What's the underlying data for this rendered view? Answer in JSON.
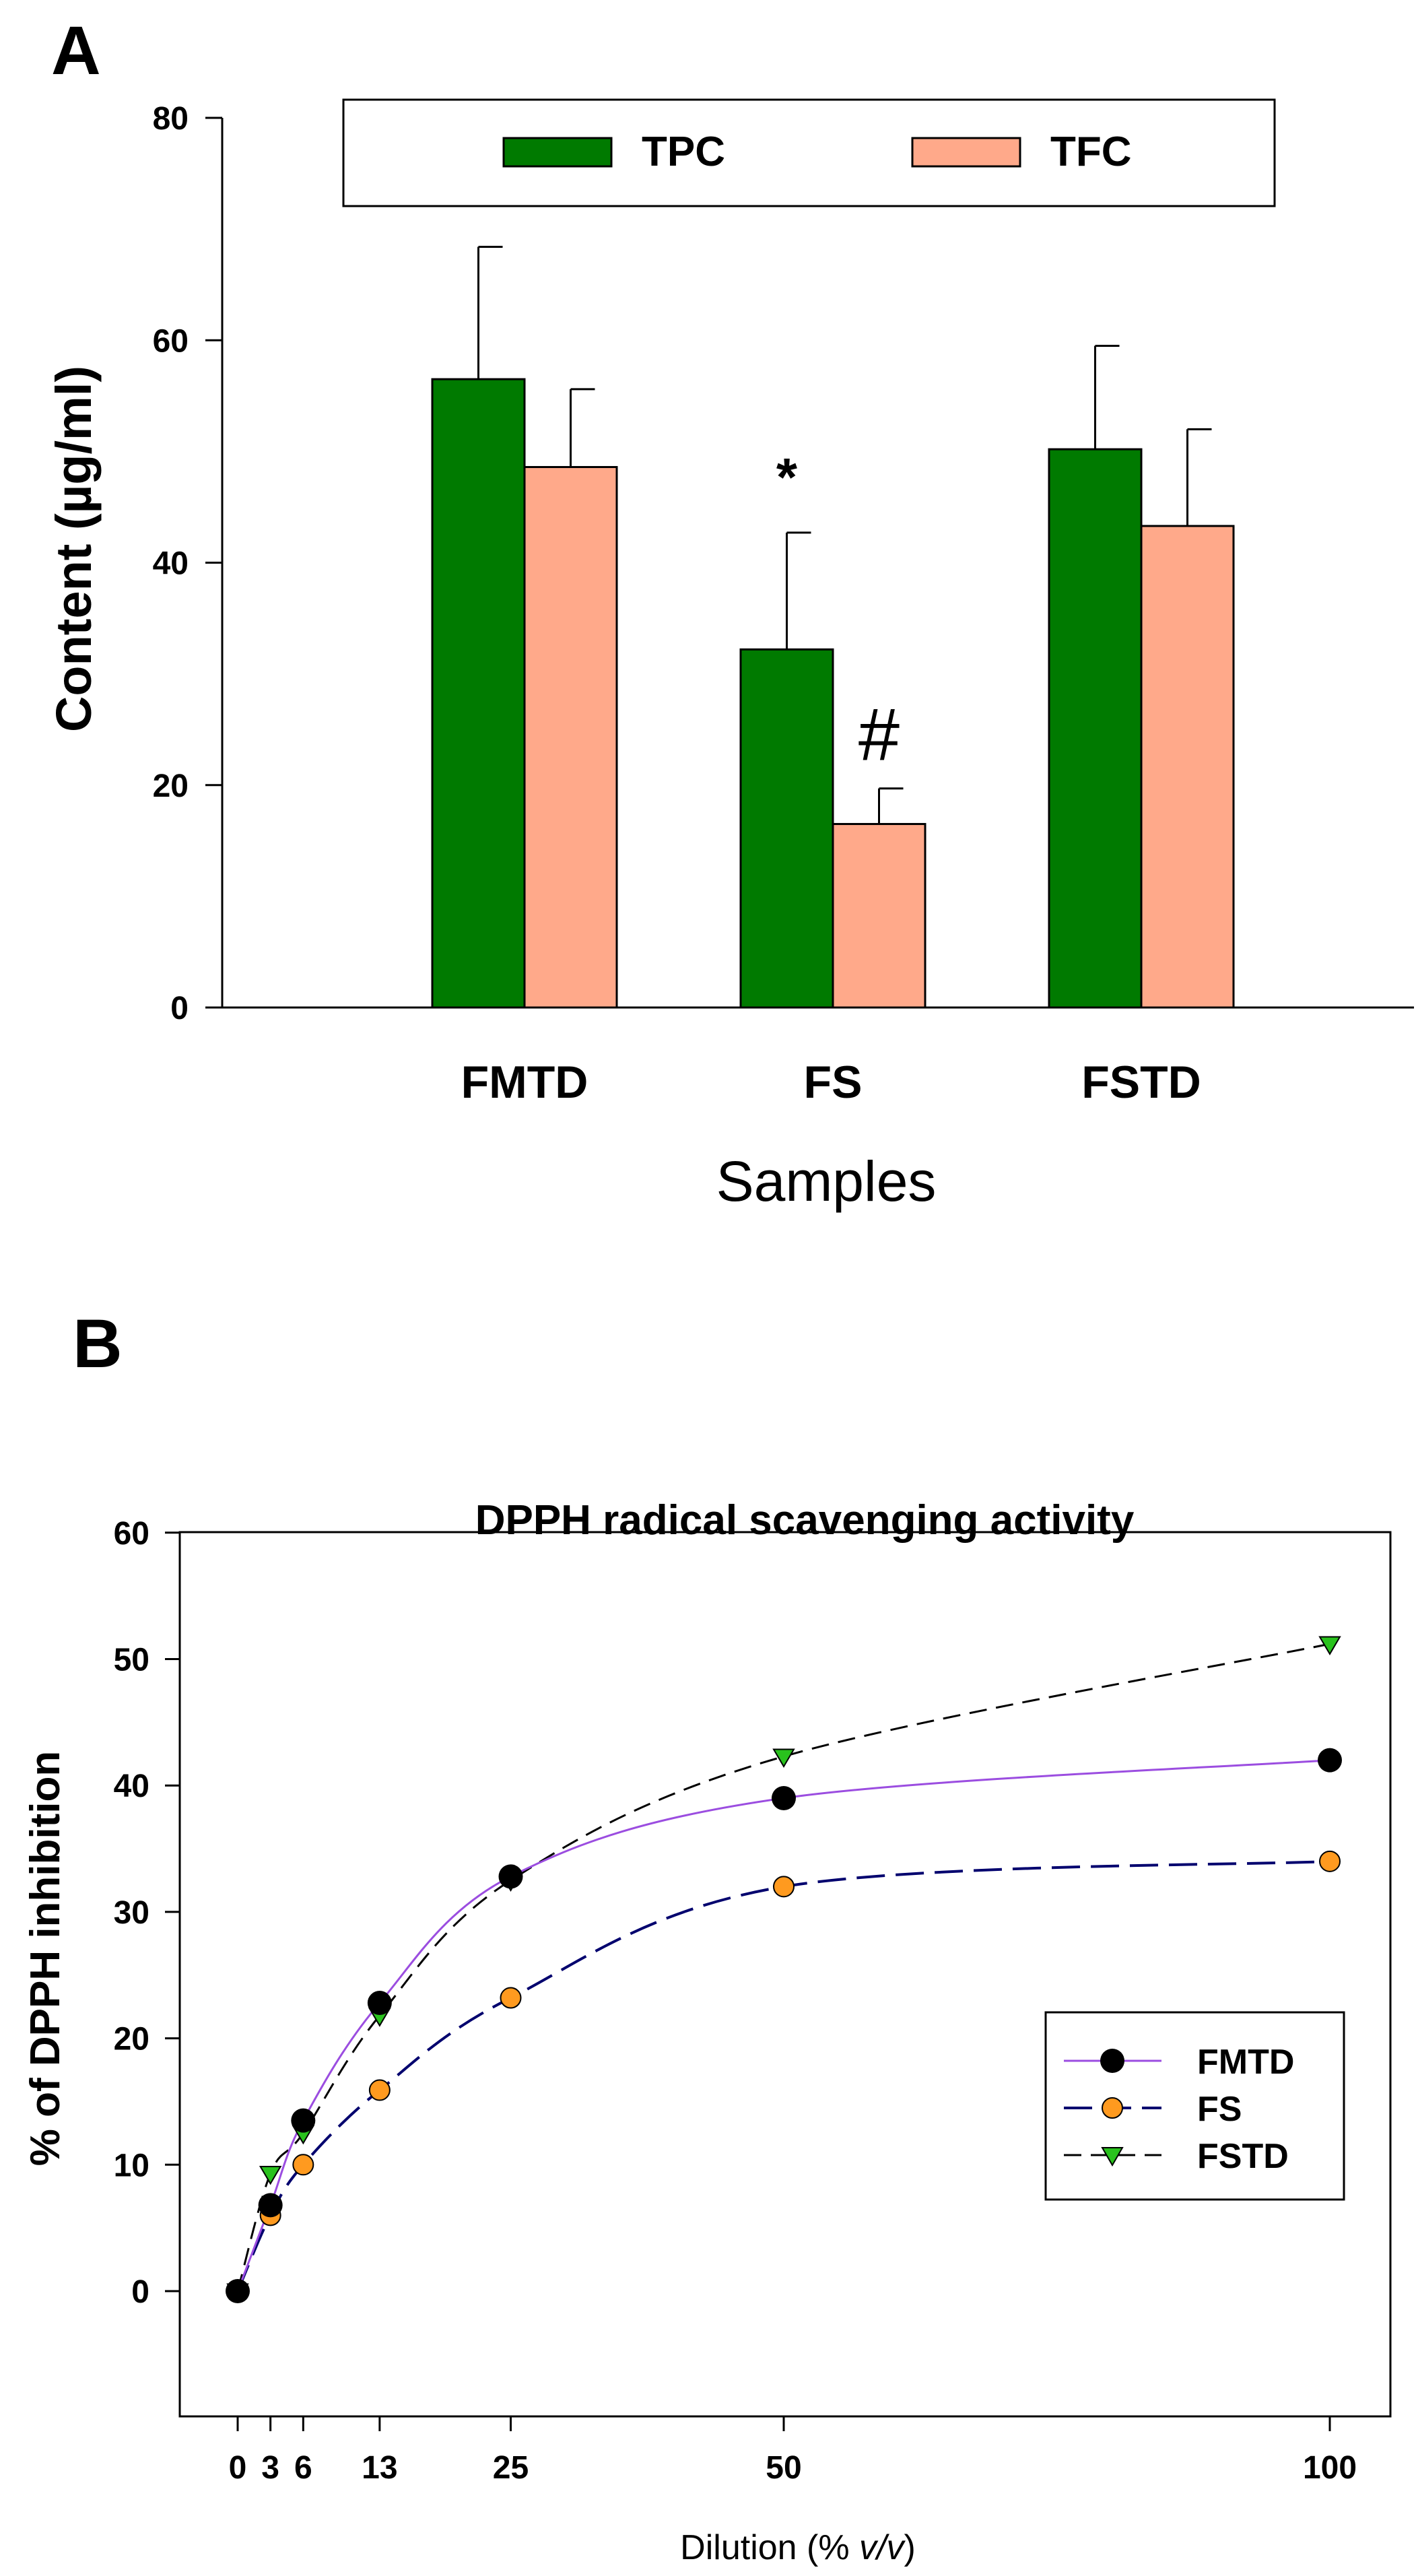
{
  "panels": {
    "a": {
      "label": "A"
    },
    "b": {
      "label": "B"
    }
  },
  "colors": {
    "tpc": "#007a00",
    "tfc": "#ffa98a",
    "fmtd": "#9b4de0",
    "fs": "#00006e",
    "fstd": "#000000",
    "fmtd_marker": "#000000",
    "fs_marker": "#ff9a1f",
    "fstd_marker": "#29c21d"
  },
  "chart_data": [
    {
      "type": "bar",
      "panel": "A",
      "title": "",
      "xlabel": "Samples",
      "ylabel": "Content (µg/ml)",
      "ylim": [
        0,
        80
      ],
      "yticks": [
        "0",
        "20",
        "40",
        "60",
        "80"
      ],
      "categories": [
        "FMTD",
        "FS",
        "FSTD"
      ],
      "series": [
        {
          "name": "TPC",
          "values": [
            56.5,
            32.2,
            50.2
          ],
          "errors": [
            11.9,
            10.5,
            9.3
          ]
        },
        {
          "name": "TFC",
          "values": [
            48.6,
            16.5,
            43.3
          ],
          "errors": [
            7.0,
            3.2,
            8.7
          ]
        }
      ],
      "annotations": [
        {
          "text": "*",
          "category": "FS",
          "series": "TPC"
        },
        {
          "text": "#",
          "category": "FS",
          "series": "TFC"
        }
      ],
      "legend": {
        "position": "top",
        "entries": [
          "TPC",
          "TFC"
        ]
      }
    },
    {
      "type": "line",
      "panel": "B",
      "title": "DPPH radical scavenging activity",
      "xlabel_prefix": "Dilution (% ",
      "xlabel_italic": "v/v",
      "xlabel_suffix": ")",
      "ylabel": "% of DPPH inhibition",
      "xlim": [
        0,
        100
      ],
      "ylim": [
        -10,
        60
      ],
      "xticks": [
        "0",
        "3",
        "6",
        "13",
        "25",
        "50",
        "100"
      ],
      "yticks": [
        "0",
        "10",
        "20",
        "30",
        "40",
        "50",
        "60"
      ],
      "x": [
        0,
        3,
        6,
        13,
        25,
        50,
        100
      ],
      "series": [
        {
          "name": "FMTD",
          "values": [
            0,
            6.8,
            13.5,
            22.8,
            32.8,
            39.0,
            42.0
          ]
        },
        {
          "name": "FS",
          "values": [
            0,
            6.0,
            10.0,
            15.9,
            23.2,
            32.0,
            34.0
          ]
        },
        {
          "name": "FSTD",
          "values": [
            0,
            9.3,
            12.5,
            21.8,
            32.5,
            42.3,
            51.2
          ]
        }
      ],
      "legend": {
        "position": "right",
        "entries": [
          "FMTD",
          "FS",
          "FSTD"
        ]
      }
    }
  ]
}
